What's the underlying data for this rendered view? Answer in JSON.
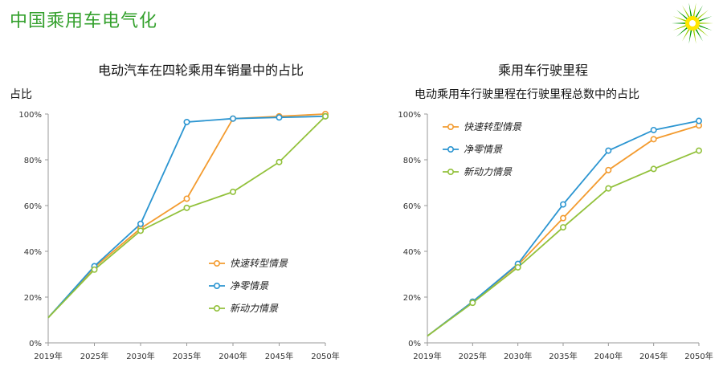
{
  "slide_title": "中国乘用车电气化",
  "logo": {
    "icon": "bp-helios-icon",
    "colors": [
      "#009900",
      "#99cc00",
      "#ffe600"
    ]
  },
  "chart_data": [
    {
      "type": "line",
      "title": "电动汽车在四轮乘用车销量中的占比",
      "subtitle": "",
      "ylabel": "占比",
      "xlabel": "",
      "x": [
        "2019年",
        "2025年",
        "2030年",
        "2035年",
        "2040年",
        "2045年",
        "2050年"
      ],
      "yticks": [
        "0%",
        "20%",
        "40%",
        "60%",
        "80%",
        "100%"
      ],
      "ylim": [
        0,
        100
      ],
      "grid": false,
      "legend_position": "bottom-right",
      "series": [
        {
          "name": "快速转型情景",
          "color": "#f39b2f",
          "values": [
            11,
            33,
            50,
            63,
            98,
            99,
            100
          ]
        },
        {
          "name": "净零情景",
          "color": "#2b95d1",
          "values": [
            11,
            33.5,
            52,
            96.5,
            98,
            98.5,
            99
          ]
        },
        {
          "name": "新动力情景",
          "color": "#92c13b",
          "values": [
            11,
            32,
            49,
            59,
            66,
            79,
            99
          ]
        }
      ]
    },
    {
      "type": "line",
      "title": "乘用车行驶里程",
      "subtitle": "电动乘用车行驶里程在行驶里程总数中的占比",
      "ylabel": "",
      "xlabel": "",
      "x": [
        "2019年",
        "2025年",
        "2030年",
        "2035年",
        "2040年",
        "2045年",
        "2050年"
      ],
      "yticks": [
        "0%",
        "20%",
        "40%",
        "60%",
        "80%",
        "100%"
      ],
      "ylim": [
        0,
        100
      ],
      "grid": false,
      "legend_position": "top-left",
      "series": [
        {
          "name": "快速转型情景",
          "color": "#f39b2f",
          "values": [
            3,
            18,
            34,
            54.5,
            75.5,
            89,
            95
          ]
        },
        {
          "name": "净零情景",
          "color": "#2b95d1",
          "values": [
            3,
            18,
            34.5,
            60.5,
            84,
            93,
            97
          ]
        },
        {
          "name": "新动力情景",
          "color": "#92c13b",
          "values": [
            3,
            17.5,
            33,
            50.5,
            67.5,
            76,
            84
          ]
        }
      ]
    }
  ]
}
